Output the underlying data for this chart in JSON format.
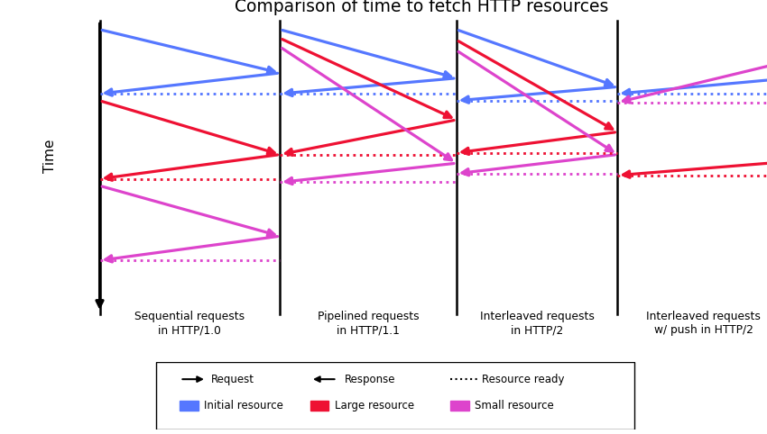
{
  "title": "Comparison of time to fetch HTTP resources",
  "panel_labels": [
    "Sequential requests\nin HTTP/1.0",
    "Pipelined requests\nin HTTP/1.1",
    "Interleaved requests\nin HTTP/2",
    "Interleaved requests\nw/ push in HTTP/2"
  ],
  "time_label": "Time",
  "blue": "#5577FF",
  "red": "#EE1133",
  "mag": "#DD44CC",
  "figsize": [
    8.5,
    4.82
  ],
  "dpi": 100
}
